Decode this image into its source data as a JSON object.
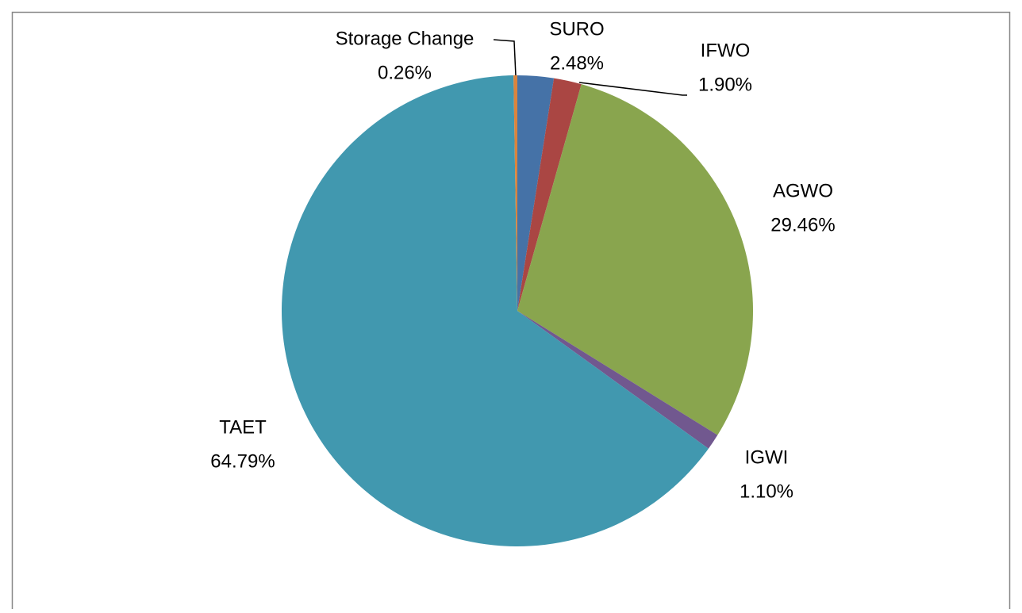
{
  "chart_data": {
    "type": "pie",
    "categories": [
      "SURO",
      "IFWO",
      "AGWO",
      "IGWI",
      "TAET",
      "Storage Change"
    ],
    "values": [
      2.48,
      1.9,
      29.46,
      1.1,
      64.79,
      0.26
    ],
    "value_labels": [
      "2.48%",
      "1.90%",
      "29.46%",
      "1.10%",
      "64.79%",
      "0.26%"
    ],
    "colors": [
      "#4572a7",
      "#aa4643",
      "#89a54e",
      "#71588f",
      "#4198af",
      "#db843d"
    ]
  }
}
